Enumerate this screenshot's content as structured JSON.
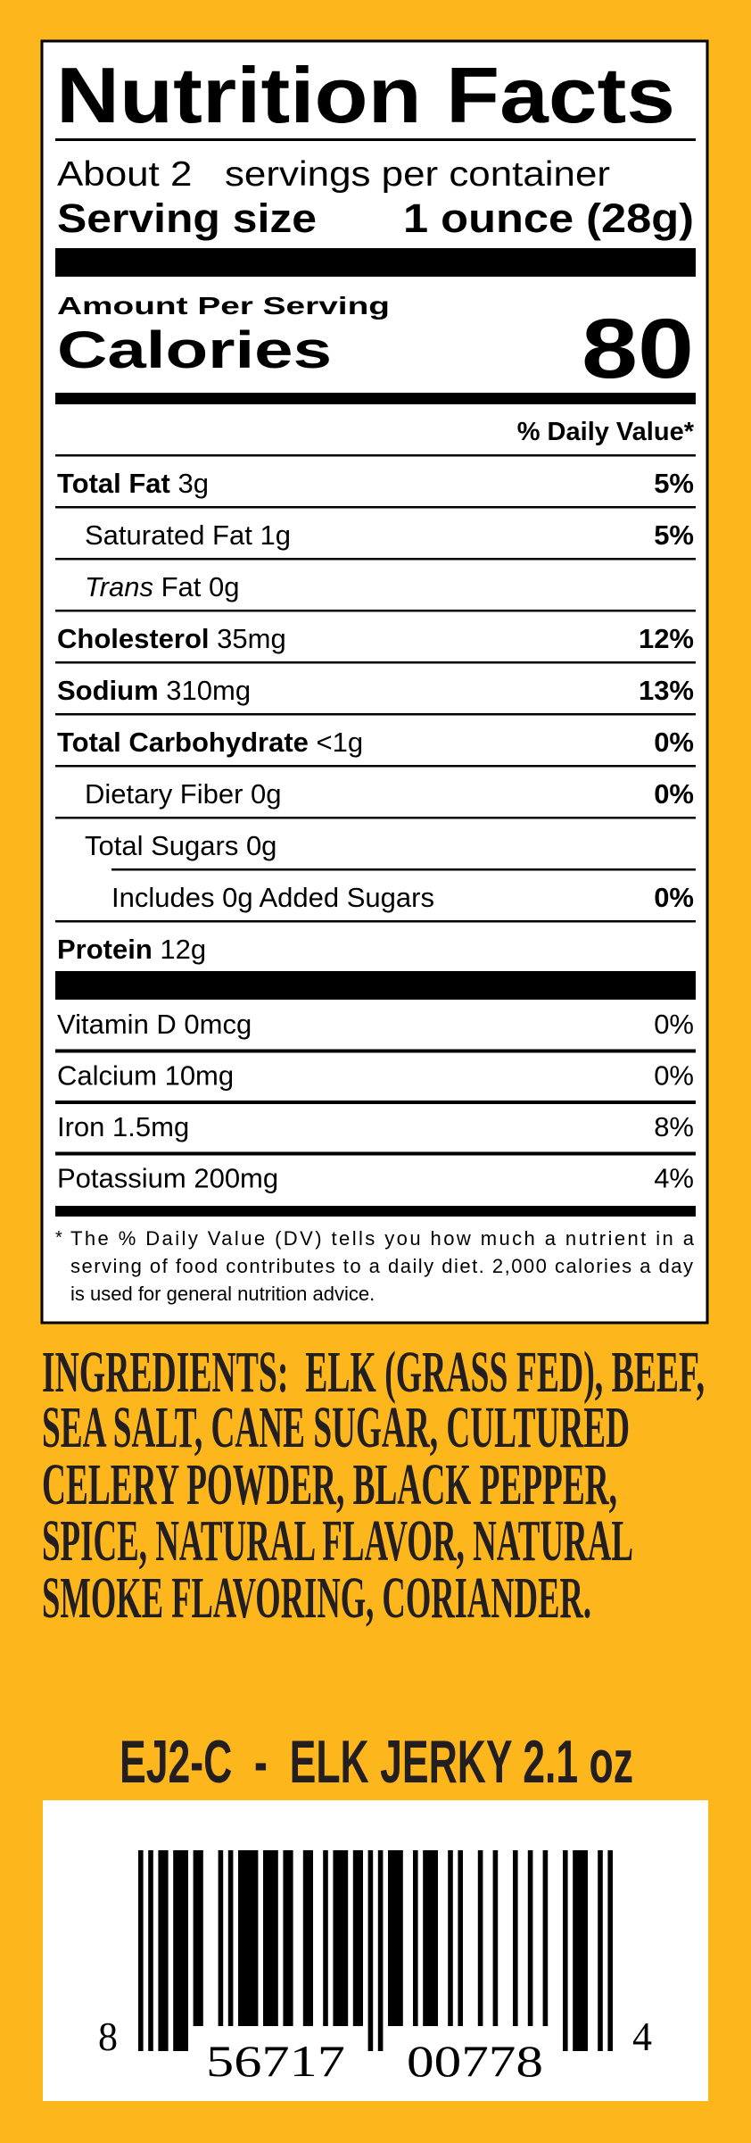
{
  "colors": {
    "background": "#FDB71C",
    "ink": "#231F20",
    "label_bg": "#FFFFFF",
    "label_ink": "#000000"
  },
  "label": {
    "title": "Nutrition Facts",
    "servings_per_container": "About 2   servings per container",
    "serving_size_label": "Serving size",
    "serving_size_value": "1 ounce (28g)",
    "amount_per_serving": "Amount Per Serving",
    "calories_label": "Calories",
    "calories_value": "80",
    "dv_header": "% Daily Value*",
    "nutrients": [
      {
        "label": "Total Fat",
        "amount": " 3g",
        "dv": "5%",
        "bold": true,
        "indent": 0
      },
      {
        "label": "Saturated Fat",
        "amount": " 1g",
        "dv": "5%",
        "bold": false,
        "indent": 1
      },
      {
        "label_italic": "Trans",
        "label": " Fat",
        "amount": " 0g",
        "dv": "",
        "bold": false,
        "indent": 1
      },
      {
        "label": "Cholesterol",
        "amount": " 35mg",
        "dv": "12%",
        "bold": true,
        "indent": 0
      },
      {
        "label": "Sodium",
        "amount": " 310mg",
        "dv": "13%",
        "bold": true,
        "indent": 0
      },
      {
        "label": "Total Carbohydrate",
        "amount": " <1g",
        "dv": "0%",
        "bold": true,
        "indent": 0
      },
      {
        "label": "Dietary Fiber",
        "amount": " 0g",
        "dv": "0%",
        "bold": false,
        "indent": 1
      },
      {
        "label": "Total Sugars",
        "amount": "  0g",
        "dv": "",
        "bold": false,
        "indent": 1
      },
      {
        "label": "Includes",
        "amount": "   0g Added Sugars",
        "dv": "0%",
        "bold": false,
        "indent": 2
      },
      {
        "label": "Protein",
        "amount": " 12g",
        "dv": "",
        "bold": true,
        "indent": 0
      }
    ],
    "vitamins": [
      {
        "label": "Vitamin D 0mcg",
        "dv": "0%"
      },
      {
        "label": "Calcium 10mg",
        "dv": "0%"
      },
      {
        "label": "Iron 1.5mg",
        "dv": "8%"
      },
      {
        "label": "Potassium 200mg",
        "dv": "4%"
      }
    ],
    "footnote_star": "*",
    "footnote_lines": [
      "The % Daily Value (DV) tells you how much a nutrient in a",
      "serving of food contributes to a daily diet. 2,000 calories a day",
      "is used for general nutrition advice."
    ]
  },
  "ingredients_lines": [
    "INGREDIENTS:  ELK (GRASS FED), BEEF,",
    "SEA SALT, CANE SUGAR, CULTURED",
    "CELERY POWDER, BLACK PEPPER,",
    "SPICE, NATURAL FLAVOR, NATURAL",
    "SMOKE FLAVORING, CORIANDER."
  ],
  "product_title": "EJ2-C  -  ELK JERKY 2.1 oz",
  "barcode": {
    "type": "UPC-A",
    "digits": "856717007784",
    "first_digit": "8",
    "left_group": "56717",
    "right_group": "00778",
    "check_digit": "4"
  }
}
